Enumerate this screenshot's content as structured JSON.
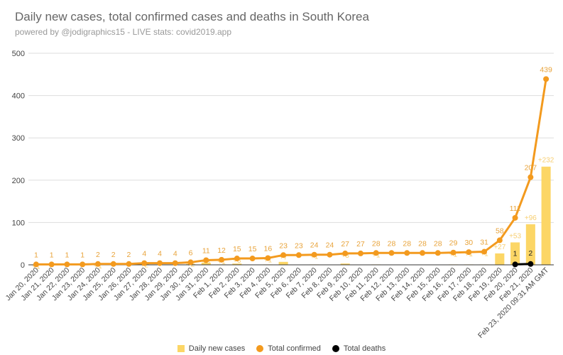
{
  "chart_data": {
    "type": "bar+line",
    "title": "Daily new cases, total confirmed cases and deaths in South Korea",
    "subtitle": "powered by @jodigraphics15 - LIVE stats: covid2019.app",
    "xlabel": "",
    "ylabel": "",
    "ylim": [
      0,
      500
    ],
    "yticks": [
      0,
      100,
      200,
      300,
      400,
      500
    ],
    "grid": true,
    "legend_position": "bottom",
    "categories": [
      "Jan 20, 2020",
      "Jan 21, 2020",
      "Jan 22, 2020",
      "Jan 23, 2020",
      "Jan 24, 2020",
      "Jan 25, 2020",
      "Jan 26, 2020",
      "Jan 27, 2020",
      "Jan 28, 2020",
      "Jan 29, 2020",
      "Jan 30, 2020",
      "Jan 31, 2020",
      "Feb 1, 2020",
      "Feb 2, 2020",
      "Feb 3, 2020",
      "Feb 4, 2020",
      "Feb 5, 2020",
      "Feb 6, 2020",
      "Feb 7, 2020",
      "Feb 8, 2020",
      "Feb 9, 2020",
      "Feb 10, 2020",
      "Feb 11, 2020",
      "Feb 12, 2020",
      "Feb 13, 2020",
      "Feb 14, 2020",
      "Feb 15, 2020",
      "Feb 16, 2020",
      "Feb 17, 2020",
      "Feb 18, 2020",
      "Feb 19, 2020",
      "Feb 20, 2020",
      "Feb 21, 2020",
      "Feb 23, 2020 09:31 AM GMT"
    ],
    "series": [
      {
        "name": "Daily new cases",
        "type": "bar",
        "color": "#fcd666",
        "values": [
          1,
          0,
          0,
          0,
          1,
          0,
          0,
          2,
          0,
          0,
          2,
          5,
          1,
          3,
          0,
          1,
          7,
          0,
          1,
          0,
          3,
          0,
          1,
          0,
          0,
          0,
          0,
          1,
          1,
          1,
          27,
          53,
          96,
          232
        ],
        "labels": [
          "+1",
          "",
          "",
          "",
          "+1",
          "",
          "",
          "+2",
          "",
          "",
          "+2",
          "+5",
          "+1",
          "+3",
          "",
          "+1",
          "+7",
          "",
          "+1",
          "",
          "+3",
          "",
          "+1",
          "",
          "",
          "",
          "",
          "+1",
          "+1",
          "+1",
          "+27",
          "+53",
          "+96",
          "+232"
        ]
      },
      {
        "name": "Total confirmed",
        "type": "line",
        "color": "#f39a1e",
        "values": [
          1,
          1,
          1,
          1,
          2,
          2,
          2,
          4,
          4,
          4,
          6,
          11,
          12,
          15,
          15,
          16,
          23,
          23,
          24,
          24,
          27,
          27,
          28,
          28,
          28,
          28,
          28,
          29,
          30,
          31,
          58,
          111,
          207,
          439
        ]
      },
      {
        "name": "Total deaths",
        "type": "line",
        "color": "#000000",
        "values": [
          null,
          null,
          null,
          null,
          null,
          null,
          null,
          null,
          null,
          null,
          null,
          null,
          null,
          null,
          null,
          null,
          null,
          null,
          null,
          null,
          null,
          null,
          null,
          null,
          null,
          null,
          null,
          null,
          null,
          null,
          null,
          1,
          2,
          null
        ]
      }
    ]
  },
  "legend": {
    "daily_label": "Daily new cases",
    "confirmed_label": "Total confirmed",
    "deaths_label": "Total deaths"
  }
}
